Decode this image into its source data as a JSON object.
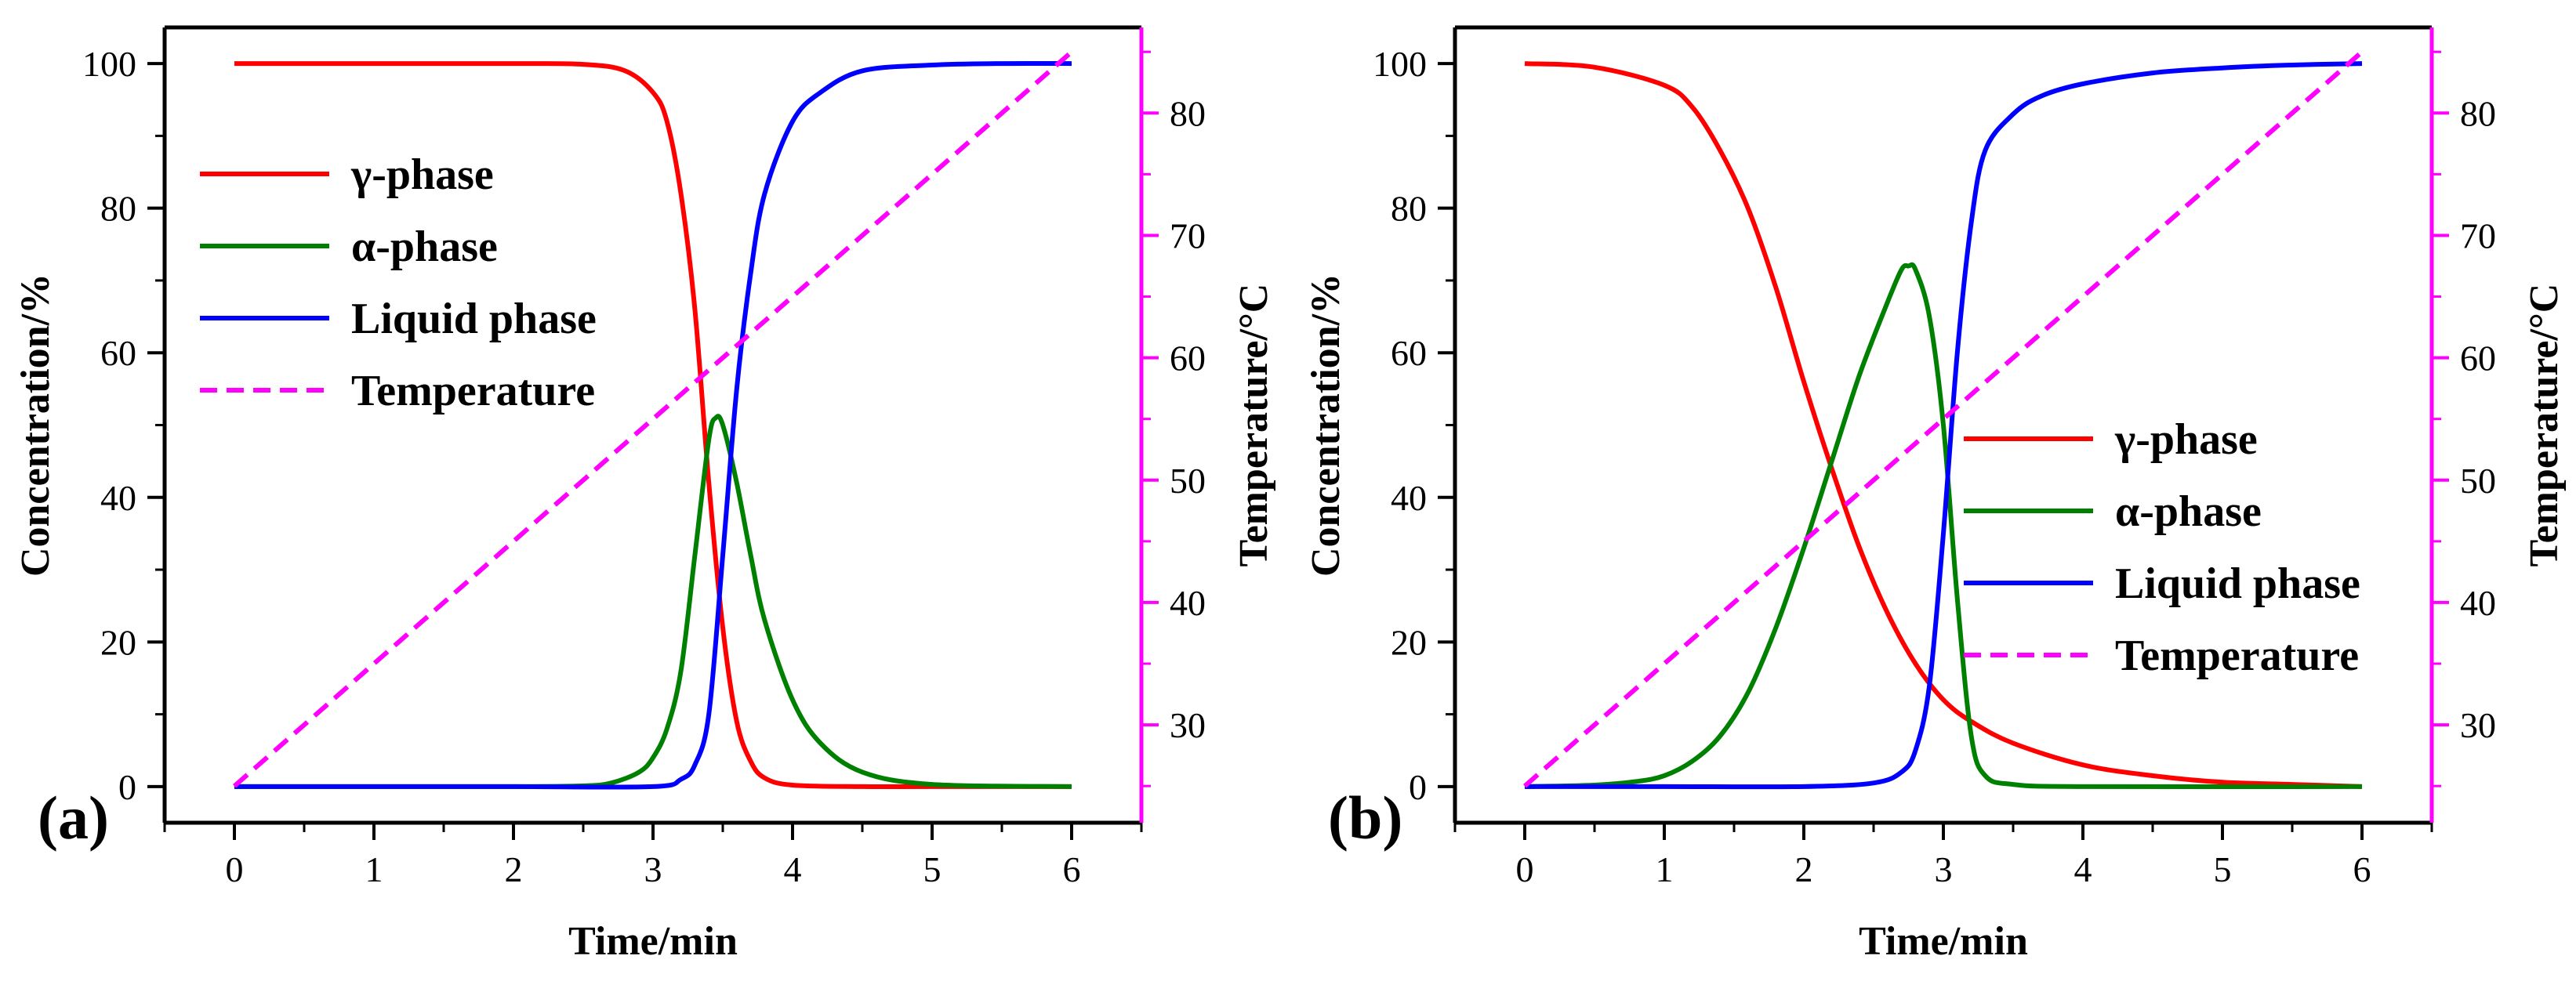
{
  "colors": {
    "gamma": "#ff0000",
    "alpha": "#008000",
    "liquid": "#0000ff",
    "temperature": "#ff00ff",
    "axis": "#000000"
  },
  "chart_data": [
    {
      "type": "line",
      "panel_label": "(a)",
      "xlabel": "Time/min",
      "ylabel": "Concentration/%",
      "y2label": "Temperature/°C",
      "xlim": [
        -0.5,
        6.5
      ],
      "ylim": [
        -5,
        105
      ],
      "y2lim": [
        22,
        87
      ],
      "xticks": [
        0,
        1,
        2,
        3,
        4,
        5,
        6
      ],
      "yticks": [
        0,
        20,
        40,
        60,
        80,
        100
      ],
      "y2ticks": [
        30,
        40,
        50,
        60,
        70,
        80
      ],
      "legend_position": "upper-left",
      "series": [
        {
          "name": "γ-phase",
          "axis": "left",
          "style": "solid",
          "x": [
            0,
            1,
            2,
            2.5,
            2.8,
            3.0,
            3.1,
            3.2,
            3.3,
            3.4,
            3.5,
            3.6,
            3.7,
            3.8,
            4.0,
            4.5,
            5,
            6
          ],
          "y": [
            100,
            100,
            100,
            99.9,
            99,
            96,
            92,
            82,
            66,
            42,
            22,
            9,
            3.5,
            1.2,
            0.2,
            0,
            0,
            0
          ]
        },
        {
          "name": "α-phase",
          "axis": "left",
          "style": "solid",
          "x": [
            0,
            1,
            2,
            2.5,
            2.7,
            2.9,
            3.0,
            3.1,
            3.2,
            3.3,
            3.4,
            3.45,
            3.5,
            3.6,
            3.7,
            3.8,
            4.0,
            4.2,
            4.5,
            5,
            6
          ],
          "y": [
            0,
            0,
            0,
            0.1,
            0.5,
            2,
            4,
            8,
            16,
            32,
            48,
            51,
            50,
            42,
            32,
            23,
            12,
            6,
            2,
            0.3,
            0
          ]
        },
        {
          "name": "Liquid phase",
          "axis": "left",
          "style": "solid",
          "x": [
            0,
            1,
            2,
            3.0,
            3.2,
            3.3,
            3.4,
            3.5,
            3.6,
            3.7,
            3.8,
            4.0,
            4.2,
            4.5,
            5,
            5.5,
            6
          ],
          "y": [
            0,
            0,
            0,
            0,
            1,
            3,
            10,
            32,
            55,
            71,
            82,
            92,
            96,
            99,
            99.8,
            100,
            100
          ]
        },
        {
          "name": "Temperature",
          "axis": "right",
          "style": "dashed",
          "x": [
            0,
            6
          ],
          "y": [
            25,
            85
          ]
        }
      ]
    },
    {
      "type": "line",
      "panel_label": "(b)",
      "xlabel": "Time/min",
      "ylabel": "Concentration/%",
      "y2label": "Temperature/°C",
      "xlim": [
        -0.5,
        6.5
      ],
      "ylim": [
        -5,
        105
      ],
      "y2lim": [
        22,
        87
      ],
      "xticks": [
        0,
        1,
        2,
        3,
        4,
        5,
        6
      ],
      "yticks": [
        0,
        20,
        40,
        60,
        80,
        100
      ],
      "y2ticks": [
        30,
        40,
        50,
        60,
        70,
        80
      ],
      "legend_position": "center-right",
      "series": [
        {
          "name": "γ-phase",
          "axis": "left",
          "style": "solid",
          "x": [
            0,
            0.5,
            1.0,
            1.2,
            1.4,
            1.6,
            1.8,
            2.0,
            2.2,
            2.4,
            2.6,
            2.8,
            3.0,
            3.2,
            3.5,
            4.0,
            4.5,
            5,
            5.5,
            6
          ],
          "y": [
            100,
            99.5,
            97,
            94,
            88,
            80,
            69,
            56,
            44,
            33,
            24,
            17,
            12,
            9,
            6,
            3,
            1.5,
            0.6,
            0.3,
            0
          ]
        },
        {
          "name": "α-phase",
          "axis": "left",
          "style": "solid",
          "x": [
            0,
            0.5,
            0.8,
            1.0,
            1.2,
            1.4,
            1.6,
            1.8,
            2.0,
            2.2,
            2.4,
            2.6,
            2.7,
            2.75,
            2.8,
            2.9,
            3.0,
            3.1,
            3.2,
            3.3,
            3.5,
            4,
            6
          ],
          "y": [
            0,
            0.2,
            0.7,
            1.5,
            3.5,
            7,
            13,
            22,
            33,
            45,
            57,
            67,
            71.5,
            72,
            71.5,
            65,
            50,
            26,
            7,
            1.5,
            0.3,
            0,
            0
          ]
        },
        {
          "name": "Liquid phase",
          "axis": "left",
          "style": "solid",
          "x": [
            0,
            1,
            2,
            2.5,
            2.7,
            2.8,
            2.9,
            3.0,
            3.1,
            3.2,
            3.3,
            3.5,
            3.7,
            4.0,
            4.5,
            5,
            5.5,
            6
          ],
          "y": [
            0,
            0,
            0,
            0.5,
            2,
            5,
            14,
            35,
            60,
            78,
            88,
            93,
            95.5,
            97.2,
            98.7,
            99.4,
            99.8,
            100
          ]
        },
        {
          "name": "Temperature",
          "axis": "right",
          "style": "dashed",
          "x": [
            0,
            6
          ],
          "y": [
            25,
            85
          ]
        }
      ]
    }
  ]
}
